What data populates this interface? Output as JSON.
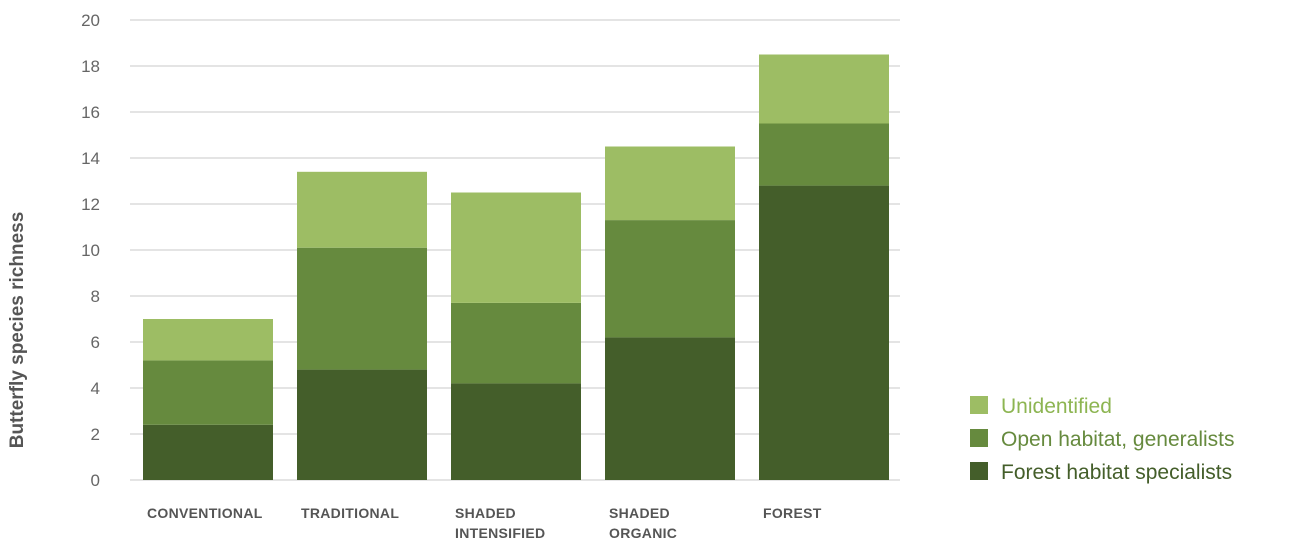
{
  "chart_data": {
    "type": "bar",
    "stacked": true,
    "categories": [
      "CONVENTIONAL",
      "TRADITIONAL",
      "SHADED INTENSIFIED",
      "SHADED ORGANIC",
      "FOREST"
    ],
    "category_lines": [
      [
        "CONVENTIONAL"
      ],
      [
        "TRADITIONAL"
      ],
      [
        "SHADED",
        "INTENSIFIED"
      ],
      [
        "SHADED",
        "ORGANIC"
      ],
      [
        "FOREST"
      ]
    ],
    "series": [
      {
        "name": "Forest habitat specialists",
        "color": "#445e2a",
        "values": [
          2.4,
          4.8,
          4.2,
          6.2,
          12.8
        ]
      },
      {
        "name": "Open habitat, generalists",
        "color": "#668a3e",
        "values": [
          2.8,
          5.3,
          3.5,
          5.1,
          2.7
        ]
      },
      {
        "name": "Unidentified",
        "color": "#9dbd64",
        "values": [
          1.8,
          3.3,
          4.8,
          3.2,
          3.0
        ]
      }
    ],
    "ylabel": "Butterfly species richness",
    "xlabel": "",
    "title": "",
    "ylim": [
      0,
      20
    ],
    "yticks": [
      0,
      2,
      4,
      6,
      8,
      10,
      12,
      14,
      16,
      18,
      20
    ],
    "grid": true,
    "legend_position": "right",
    "legend_order": [
      "Unidentified",
      "Open habitat, generalists",
      "Forest habitat specialists"
    ]
  }
}
